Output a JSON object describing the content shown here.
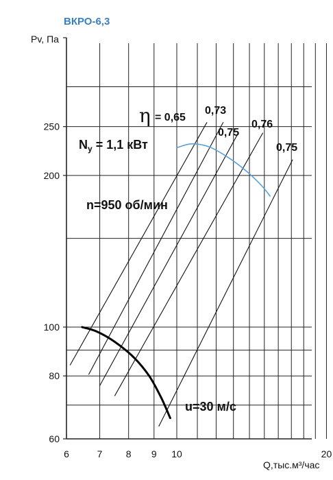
{
  "chart_data": {
    "type": "line",
    "title": "ВКРО-6,3",
    "ylabel": "Pv, Па",
    "xlabel": "Q,тыс.м³/час",
    "x_scale": "log",
    "y_scale": "log",
    "xlim": [
      6,
      20
    ],
    "ylim": [
      60,
      400
    ],
    "grid": true,
    "x_ticks": [
      "6",
      "7",
      "8",
      "9",
      "10",
      "20"
    ],
    "y_ticks": [
      "60",
      "80",
      "100",
      "200",
      "250"
    ],
    "series": [
      {
        "color": "#000000",
        "points": [
          [
            6.45,
            100
          ],
          [
            6.9,
            98
          ],
          [
            7.5,
            93.5
          ],
          [
            8.2,
            87
          ],
          [
            8.8,
            80
          ],
          [
            9.3,
            72.5
          ],
          [
            9.7,
            66
          ]
        ]
      },
      {
        "color": "#5aa0d8",
        "points": [
          [
            10.0,
            227
          ],
          [
            10.7,
            231
          ],
          [
            11.6,
            228
          ],
          [
            12.7,
            217
          ],
          [
            13.8,
            204
          ],
          [
            14.8,
            191
          ],
          [
            15.4,
            182
          ]
        ]
      }
    ],
    "efficiency_lines": [
      {
        "label": "0,65",
        "from": [
          6.1,
          84
        ],
        "to": [
          11.5,
          255
        ]
      },
      {
        "label": "0,73",
        "from": [
          6.65,
          80.5
        ],
        "to": [
          12.4,
          255
        ]
      },
      {
        "label": "0,75",
        "from": [
          7.0,
          76.5
        ],
        "to": [
          13.3,
          243
        ]
      },
      {
        "label": "0,76",
        "from": [
          7.5,
          73
        ],
        "to": [
          14.9,
          243
        ]
      },
      {
        "label": "0,75",
        "from": [
          9.2,
          63.5
        ],
        "to": [
          17.1,
          215
        ]
      }
    ],
    "annotations": {
      "eta": "η",
      "eta_value": "= 0,65",
      "power": "Ny = 1,1 кВт",
      "speed": "n=950 об/мин",
      "velocity": "u=30 м/с"
    },
    "colors": {
      "grid": "#222222",
      "main_curve": "#000000",
      "blue_curve": "#5aa0d8"
    }
  }
}
